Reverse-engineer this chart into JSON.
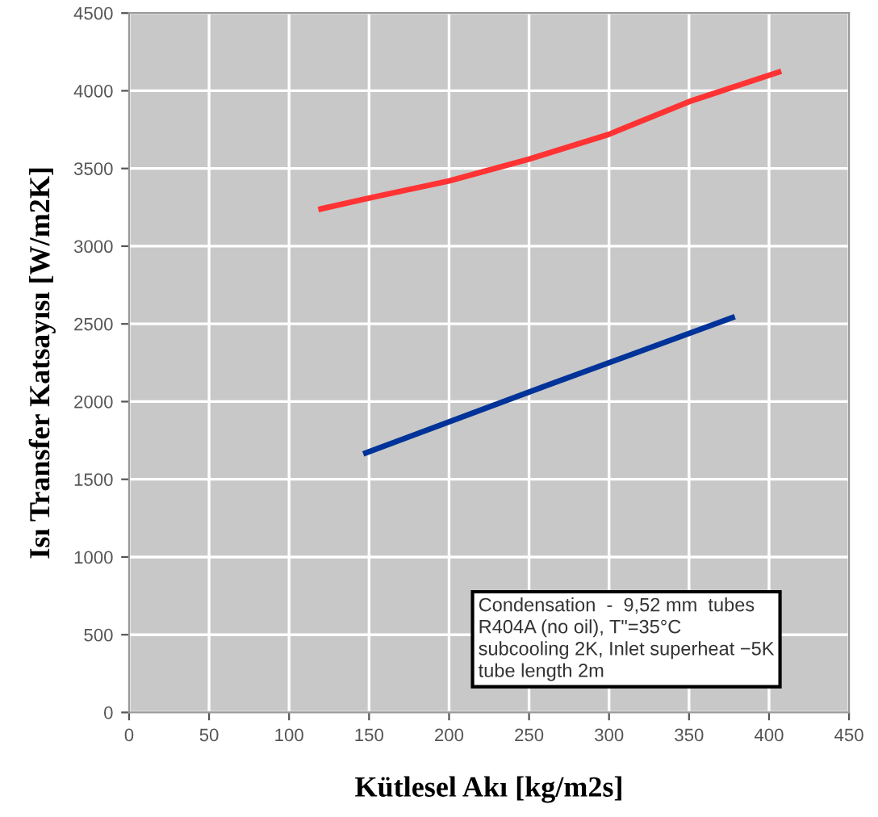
{
  "chart_data": {
    "type": "line",
    "xlabel": "Kütlesel Akı [kg/m2s]",
    "ylabel": "Isı Transfer Katsayısı [W/m2K]",
    "series": [
      {
        "color": "#ff3333",
        "x": [
          120,
          150,
          200,
          250,
          300,
          350,
          406
        ],
        "values": [
          3240,
          3310,
          3420,
          3560,
          3720,
          3930,
          4120
        ]
      },
      {
        "color": "#003399",
        "x": [
          148,
          260,
          377
        ],
        "values": [
          1670,
          2100,
          2540
        ]
      }
    ],
    "xlim": [
      0,
      450
    ],
    "xticks": [
      0,
      50,
      100,
      150,
      200,
      250,
      300,
      350,
      400,
      450
    ],
    "ylim": [
      0,
      4500
    ],
    "yticks": [
      0,
      500,
      1000,
      1500,
      2000,
      2500,
      3000,
      3500,
      4000,
      4500
    ],
    "grid": true,
    "marker": "none",
    "line_style": "solid",
    "annotations": [
      {
        "text": "Condensation  -  9,52 mm  tubes\nR404A (no oil), T\"=35°C\nsubcooling 2K, Inlet superheat −5K\ntube length 2m"
      }
    ]
  }
}
